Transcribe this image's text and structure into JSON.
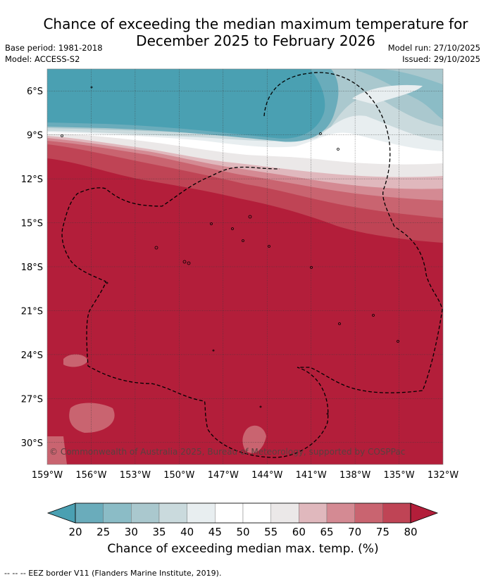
{
  "header": {
    "title_line1": "Chance of exceeding the median maximum temperature for",
    "title_line2": "December 2025 to February 2026",
    "base_period": "Base period: 1981-2018",
    "model": "Model: ACCESS-S2",
    "model_run": "Model run: 27/10/2025",
    "issued": "Issued: 29/10/2025"
  },
  "map": {
    "region": "Pacific Ocean (French Polynesia area)",
    "lon_range": [
      -159,
      -132
    ],
    "lat_range": [
      -31.5,
      -4.5
    ],
    "lon_ticks": [
      "159°W",
      "156°W",
      "153°W",
      "150°W",
      "147°W",
      "144°W",
      "141°W",
      "138°W",
      "135°W",
      "132°W"
    ],
    "lat_ticks": [
      "6°S",
      "9°S",
      "12°S",
      "15°S",
      "18°S",
      "21°S",
      "24°S",
      "27°S",
      "30°S"
    ],
    "copyright": "© Commonwealth of Australia 2025, Bureau of Meteorology, supported by COSPPac"
  },
  "legend": {
    "title": "Chance of exceeding median max. temp. (%)",
    "ticks": [
      "20",
      "25",
      "30",
      "35",
      "40",
      "45",
      "50",
      "55",
      "60",
      "65",
      "70",
      "75",
      "80"
    ],
    "colors": [
      "#4aa0b2",
      "#6aacbb",
      "#8bbcc6",
      "#aac8ce",
      "#cadadd",
      "#e8eef0",
      "#ffffff",
      "#ffffff",
      "#ebe8e8",
      "#e0b8bd",
      "#d48a93",
      "#c96470",
      "#bf4455",
      "#b31e3a"
    ]
  },
  "footnote": "--  --  -- EEZ border V11 (Flanders Marine Institute, 2019)."
}
